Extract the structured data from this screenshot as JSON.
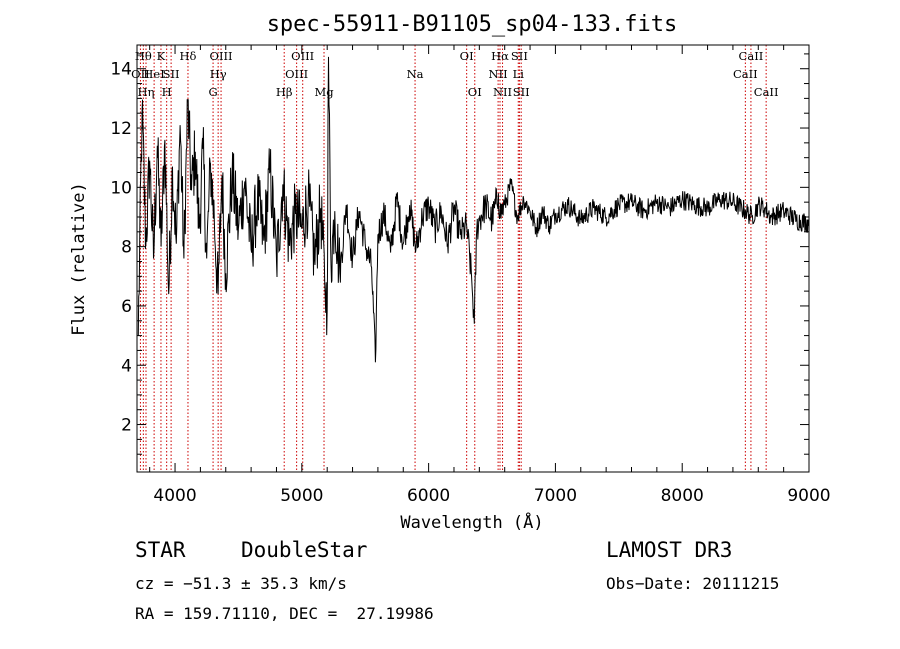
{
  "chart_data": {
    "type": "line",
    "title": "spec-55911-B91105_sp04-133.fits",
    "xlabel": "Wavelength (Å)",
    "ylabel": "Flux (relative)",
    "xlim": [
      3700,
      9000
    ],
    "ylim": [
      0.4,
      14.8
    ],
    "x_ticks": [
      4000,
      5000,
      6000,
      7000,
      8000,
      9000
    ],
    "y_ticks": [
      2,
      4,
      6,
      8,
      10,
      12,
      14
    ],
    "line_color": "#000000",
    "marker_color": "#cc0000",
    "spectrum": {
      "name": "flux",
      "x": [
        3710,
        3740,
        3770,
        3800,
        3830,
        3860,
        3890,
        3920,
        3950,
        3980,
        4010,
        4040,
        4070,
        4100,
        4130,
        4160,
        4190,
        4220,
        4250,
        4280,
        4310,
        4340,
        4370,
        4400,
        4450,
        4500,
        4550,
        4600,
        4650,
        4700,
        4750,
        4800,
        4850,
        4900,
        4950,
        5000,
        5050,
        5100,
        5150,
        5180,
        5200,
        5210,
        5230,
        5260,
        5300,
        5350,
        5400,
        5450,
        5500,
        5550,
        5580,
        5600,
        5650,
        5700,
        5750,
        5800,
        5850,
        5900,
        5950,
        6000,
        6050,
        6100,
        6150,
        6200,
        6250,
        6300,
        6340,
        6360,
        6380,
        6400,
        6450,
        6500,
        6550,
        6563,
        6600,
        6650,
        6700,
        6750,
        6800,
        6850,
        6900,
        6950,
        7000,
        7100,
        7200,
        7300,
        7400,
        7500,
        7600,
        7700,
        7800,
        7900,
        8000,
        8100,
        8200,
        8300,
        8400,
        8500,
        8550,
        8600,
        8650,
        8700,
        8800,
        8900,
        9000
      ],
      "y": [
        5.0,
        12.6,
        8.1,
        10.9,
        7.6,
        11.4,
        8.0,
        11.6,
        6.4,
        10.7,
        8.1,
        12.1,
        7.6,
        12.9,
        9.9,
        11.2,
        8.6,
        11.3,
        7.6,
        10.8,
        8.9,
        6.4,
        10.4,
        7.1,
        10.4,
        8.6,
        10.2,
        7.9,
        9.6,
        8.2,
        10.6,
        7.5,
        10.1,
        8.1,
        9.1,
        8.6,
        9.6,
        7.6,
        9.3,
        6.8,
        5.9,
        14.4,
        7.4,
        9.2,
        7.1,
        9.4,
        7.6,
        9.2,
        8.1,
        7.3,
        4.1,
        8.4,
        9.1,
        7.8,
        9.6,
        8.1,
        9.4,
        7.9,
        9.0,
        9.4,
        8.6,
        9.2,
        8.1,
        9.3,
        8.4,
        8.7,
        6.9,
        5.4,
        8.6,
        8.9,
        9.4,
        8.9,
        9.8,
        9.1,
        9.4,
        10.1,
        9.0,
        9.6,
        9.2,
        8.6,
        9.2,
        8.7,
        9.1,
        9.4,
        8.9,
        9.3,
        9.0,
        9.4,
        9.5,
        9.2,
        9.5,
        9.3,
        9.6,
        9.4,
        9.3,
        9.6,
        9.5,
        9.2,
        9.0,
        9.4,
        9.3,
        9.0,
        9.2,
        8.9,
        8.8
      ]
    },
    "line_markers": [
      {
        "w": 3727,
        "label": "OII",
        "row": 2
      },
      {
        "w": 3750,
        "label": "Hθ",
        "row": 1
      },
      {
        "w": 3771,
        "label": "Hη",
        "row": 3
      },
      {
        "w": 3835,
        "label": "HeI",
        "row": 2
      },
      {
        "w": 3889,
        "label": "K",
        "row": 1
      },
      {
        "w": 3934,
        "label": "H",
        "row": 3
      },
      {
        "w": 3969,
        "label": "SII",
        "row": 2
      },
      {
        "w": 4102,
        "label": "Hδ",
        "row": 1
      },
      {
        "w": 4300,
        "label": "G",
        "row": 3
      },
      {
        "w": 4340,
        "label": "Hγ",
        "row": 2
      },
      {
        "w": 4363,
        "label": "OIII",
        "row": 1
      },
      {
        "w": 4861,
        "label": "Hβ",
        "row": 3
      },
      {
        "w": 4959,
        "label": "OIII",
        "row": 2
      },
      {
        "w": 5007,
        "label": "OIII",
        "row": 1
      },
      {
        "w": 5175,
        "label": "Mg",
        "row": 3
      },
      {
        "w": 5893,
        "label": "Na",
        "row": 2
      },
      {
        "w": 6300,
        "label": "OI",
        "row": 1
      },
      {
        "w": 6364,
        "label": "OI",
        "row": 3
      },
      {
        "w": 6548,
        "label": "NII",
        "row": 2
      },
      {
        "w": 6563,
        "label": "Hα",
        "row": 1
      },
      {
        "w": 6583,
        "label": "NII",
        "row": 3
      },
      {
        "w": 6707,
        "label": "Li",
        "row": 2
      },
      {
        "w": 6716,
        "label": "SII",
        "row": 1
      },
      {
        "w": 6730,
        "label": "SII",
        "row": 3
      },
      {
        "w": 8498,
        "label": "CaII",
        "row": 2
      },
      {
        "w": 8542,
        "label": "CaII",
        "row": 1
      },
      {
        "w": 8662,
        "label": "CaII",
        "row": 3
      }
    ]
  },
  "info": {
    "object_class": "STAR",
    "subclass": "DoubleStar",
    "survey": "LAMOST DR3",
    "redshift": "cz = −51.3 ± 35.3 km/s",
    "obs_date": "Obs−Date: 20111215",
    "coords": "RA = 159.71110, DEC =  27.19986"
  }
}
